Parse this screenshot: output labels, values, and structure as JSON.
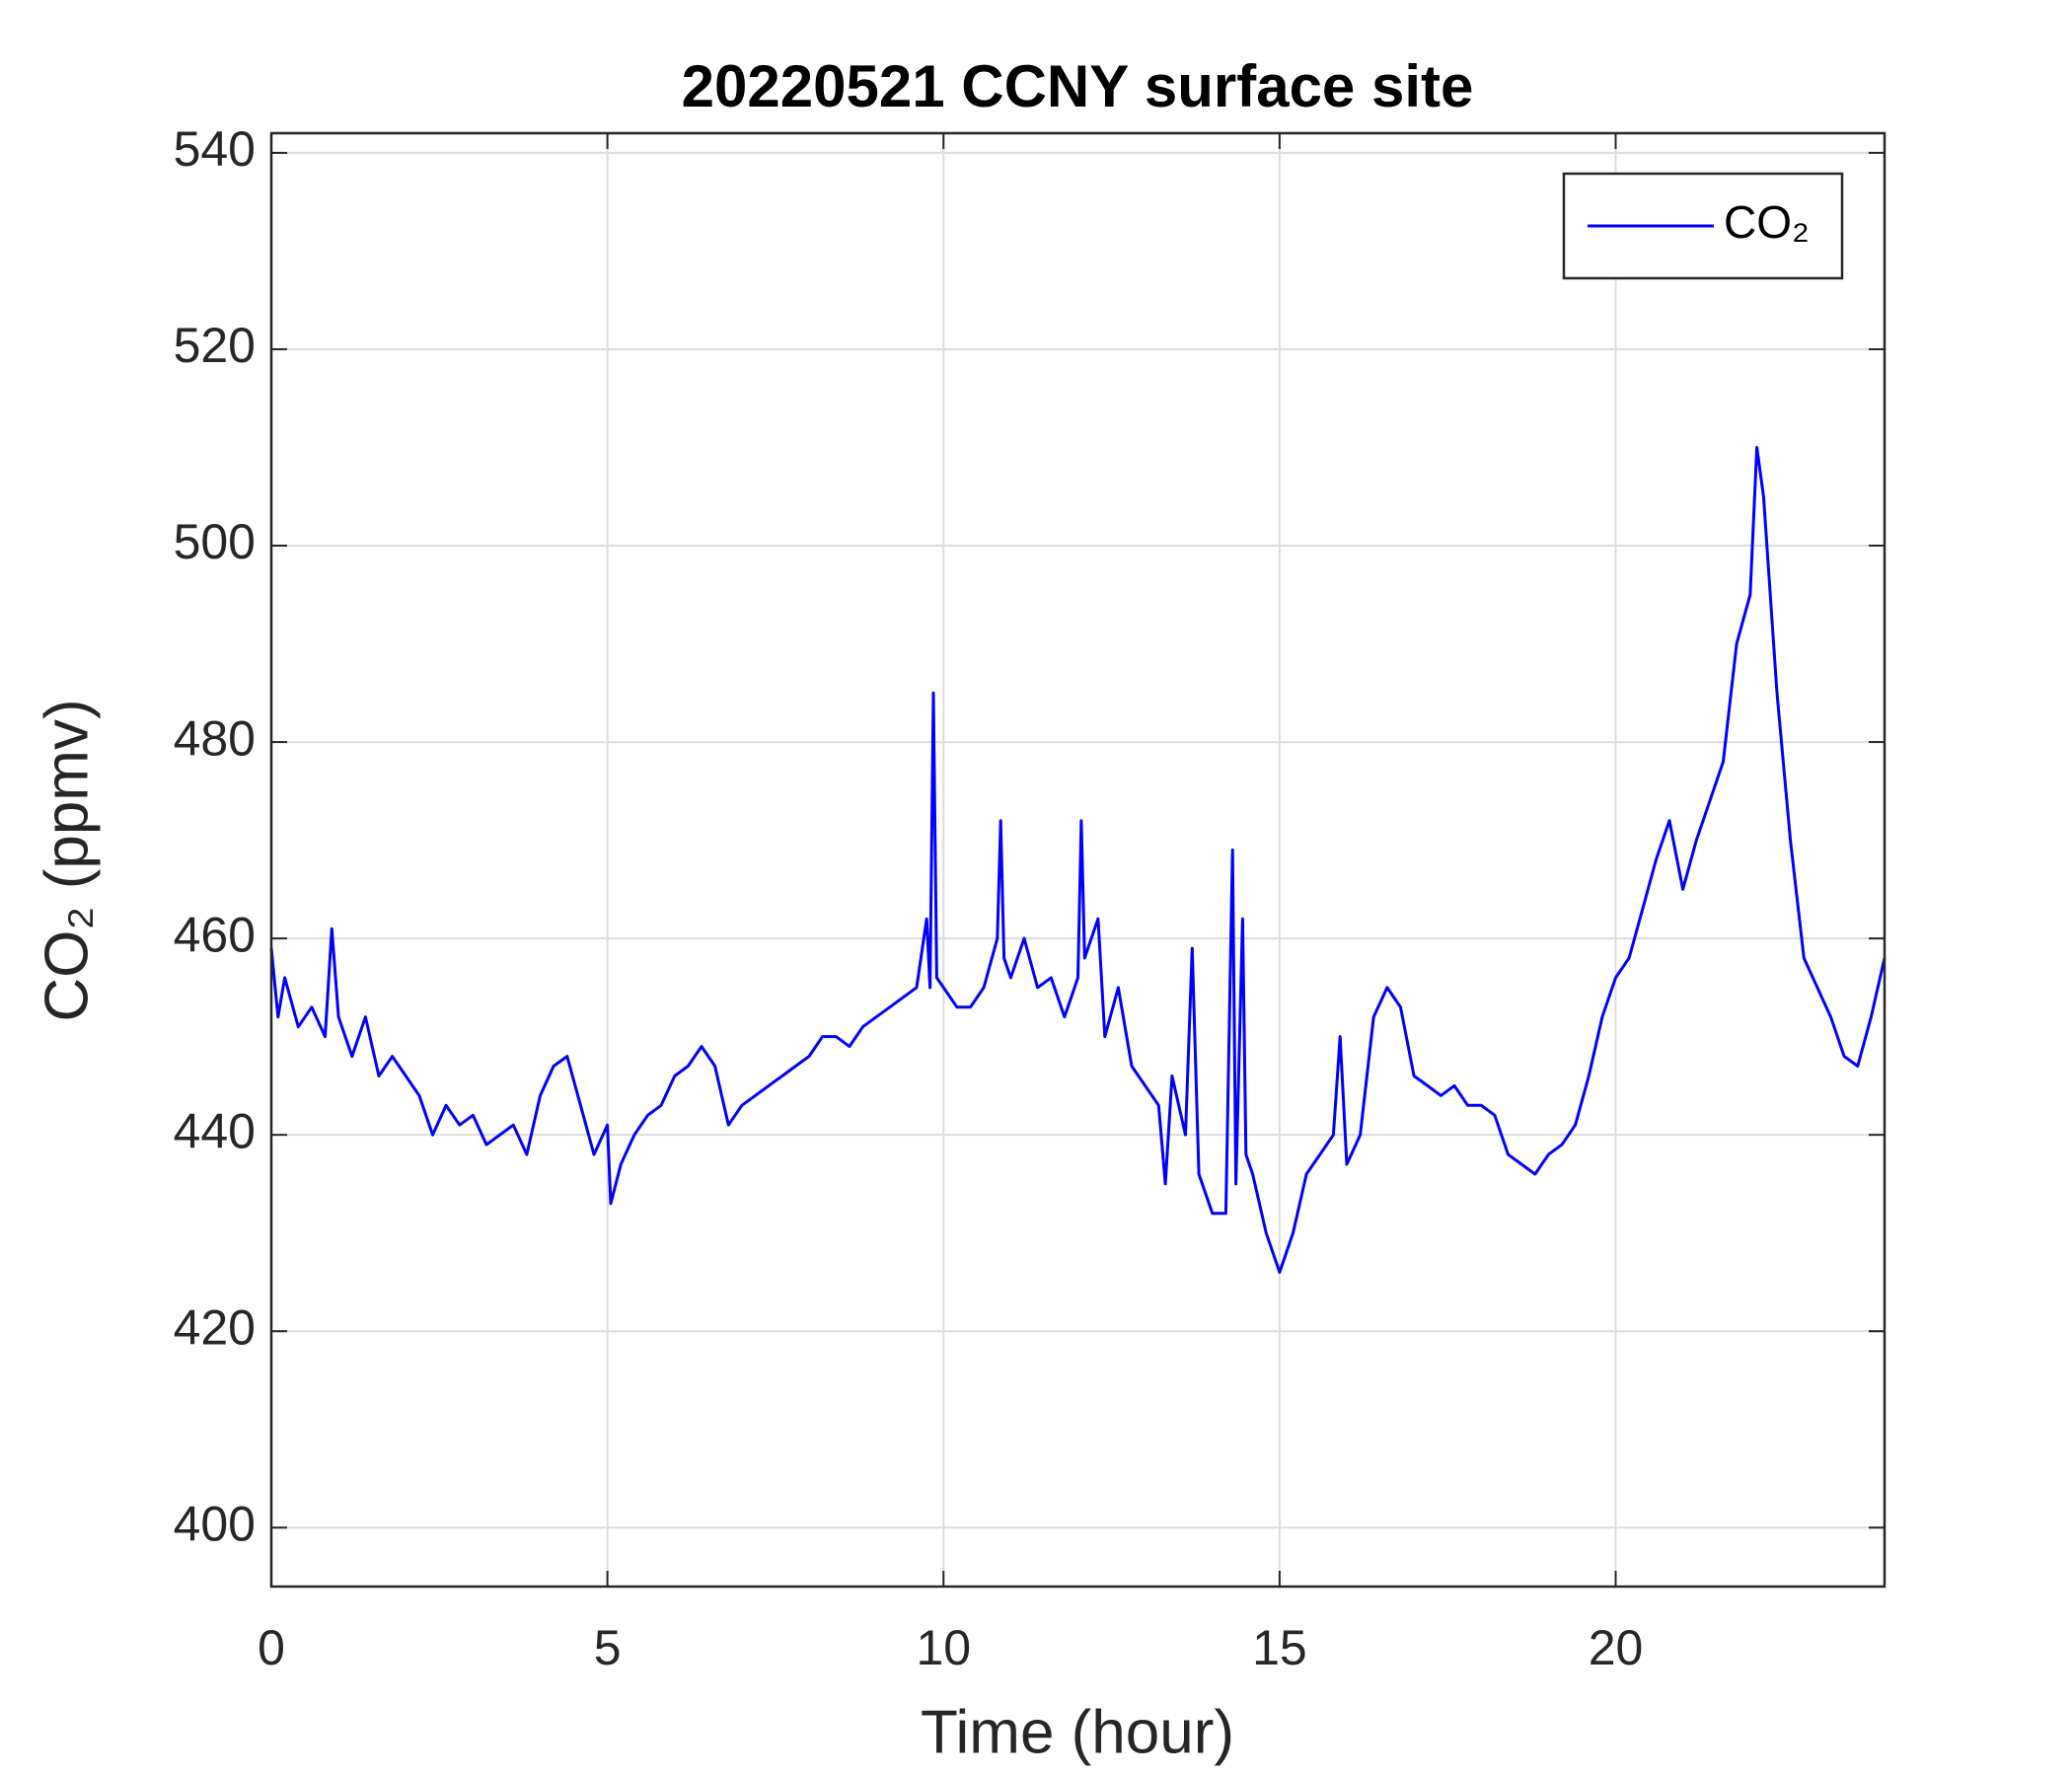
{
  "chart_data": {
    "type": "line",
    "title": "20220521 CCNY surface site",
    "x_label": "Time (hour)",
    "y_label": "CO₂ (ppmv)",
    "xlim": [
      0,
      24
    ],
    "xticks": [
      0,
      5,
      10,
      15,
      20
    ],
    "ylim": [
      394,
      542
    ],
    "yticks": [
      400,
      420,
      440,
      460,
      480,
      500,
      520,
      540
    ],
    "grid": true,
    "legend": "upper right",
    "series": [
      {
        "name": "CO₂",
        "color": "#0000ff",
        "x": [
          0,
          0.1,
          0.2,
          0.4,
          0.6,
          0.8,
          0.9,
          1.0,
          1.2,
          1.4,
          1.6,
          1.8,
          2.0,
          2.2,
          2.4,
          2.6,
          2.8,
          3.0,
          3.2,
          3.4,
          3.6,
          3.8,
          4.0,
          4.2,
          4.4,
          4.6,
          4.8,
          5.0,
          5.05,
          5.2,
          5.4,
          5.6,
          5.8,
          6.0,
          6.2,
          6.4,
          6.6,
          6.8,
          7.0,
          7.2,
          7.4,
          7.6,
          7.8,
          8.0,
          8.2,
          8.4,
          8.6,
          8.8,
          9.0,
          9.2,
          9.4,
          9.6,
          9.75,
          9.8,
          9.85,
          9.9,
          10.0,
          10.2,
          10.4,
          10.6,
          10.8,
          10.85,
          10.9,
          11.0,
          11.2,
          11.4,
          11.6,
          11.8,
          12.0,
          12.05,
          12.1,
          12.3,
          12.4,
          12.6,
          12.8,
          13.0,
          13.2,
          13.3,
          13.4,
          13.6,
          13.7,
          13.8,
          14.0,
          14.2,
          14.3,
          14.35,
          14.45,
          14.5,
          14.6,
          14.8,
          15.0,
          15.2,
          15.4,
          15.6,
          15.8,
          15.9,
          16.0,
          16.2,
          16.4,
          16.6,
          16.8,
          17.0,
          17.2,
          17.4,
          17.6,
          17.8,
          18.0,
          18.2,
          18.4,
          18.6,
          18.8,
          19.0,
          19.2,
          19.4,
          19.6,
          19.8,
          20.0,
          20.2,
          20.4,
          20.6,
          20.8,
          21.0,
          21.2,
          21.4,
          21.6,
          21.8,
          22.0,
          22.1,
          22.2,
          22.3,
          22.4,
          22.6,
          22.8,
          23.0,
          23.2,
          23.4,
          23.6,
          23.8,
          24.0
        ],
        "values": [
          459,
          452,
          456,
          451,
          453,
          450,
          461,
          452,
          448,
          452,
          446,
          448,
          446,
          444,
          440,
          443,
          441,
          442,
          439,
          440,
          441,
          438,
          444,
          447,
          448,
          443,
          438,
          441,
          433,
          437,
          440,
          442,
          443,
          446,
          447,
          449,
          447,
          441,
          443,
          444,
          445,
          446,
          447,
          448,
          450,
          450,
          449,
          451,
          452,
          453,
          454,
          455,
          462,
          455,
          485,
          456,
          455,
          453,
          453,
          455,
          460,
          472,
          458,
          456,
          460,
          455,
          456,
          452,
          456,
          472,
          458,
          462,
          450,
          455,
          447,
          445,
          443,
          435,
          446,
          440,
          459,
          436,
          432,
          432,
          469,
          435,
          462,
          438,
          436,
          430,
          426,
          430,
          436,
          438,
          440,
          450,
          437,
          440,
          452,
          455,
          453,
          446,
          445,
          444,
          445,
          443,
          443,
          442,
          438,
          437,
          436,
          438,
          439,
          441,
          446,
          452,
          456,
          458,
          463,
          468,
          472,
          465,
          470,
          474,
          478,
          490,
          495,
          510,
          505,
          495,
          485,
          470,
          458,
          455,
          452,
          448,
          447,
          452,
          458
        ]
      }
    ]
  }
}
